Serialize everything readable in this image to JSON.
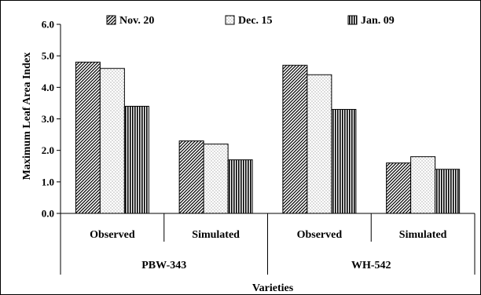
{
  "chart_data": {
    "type": "bar",
    "title": "",
    "xlabel": "Varieties",
    "ylabel": "Maximum Leaf Area Index",
    "ylim": [
      0,
      6
    ],
    "yticks": [
      "0.0",
      "1.0",
      "2.0",
      "3.0",
      "4.0",
      "5.0",
      "6.0"
    ],
    "grid": false,
    "legend_position": "top",
    "categories": [
      "Observed",
      "Simulated",
      "Observed",
      "Simulated"
    ],
    "groups": [
      {
        "label": "PBW-343",
        "categories": [
          "Observed",
          "Simulated"
        ]
      },
      {
        "label": "WH-542",
        "categories": [
          "Observed",
          "Simulated"
        ]
      }
    ],
    "series": [
      {
        "name": "Nov. 20",
        "pattern": "diagonal-hatch",
        "values": [
          4.8,
          2.3,
          4.7,
          1.6
        ]
      },
      {
        "name": "Dec. 15",
        "pattern": "dotted",
        "values": [
          4.6,
          2.2,
          4.4,
          1.8
        ]
      },
      {
        "name": "Jan. 09",
        "pattern": "vertical-stripes",
        "values": [
          3.4,
          1.7,
          3.3,
          1.4
        ]
      }
    ]
  }
}
